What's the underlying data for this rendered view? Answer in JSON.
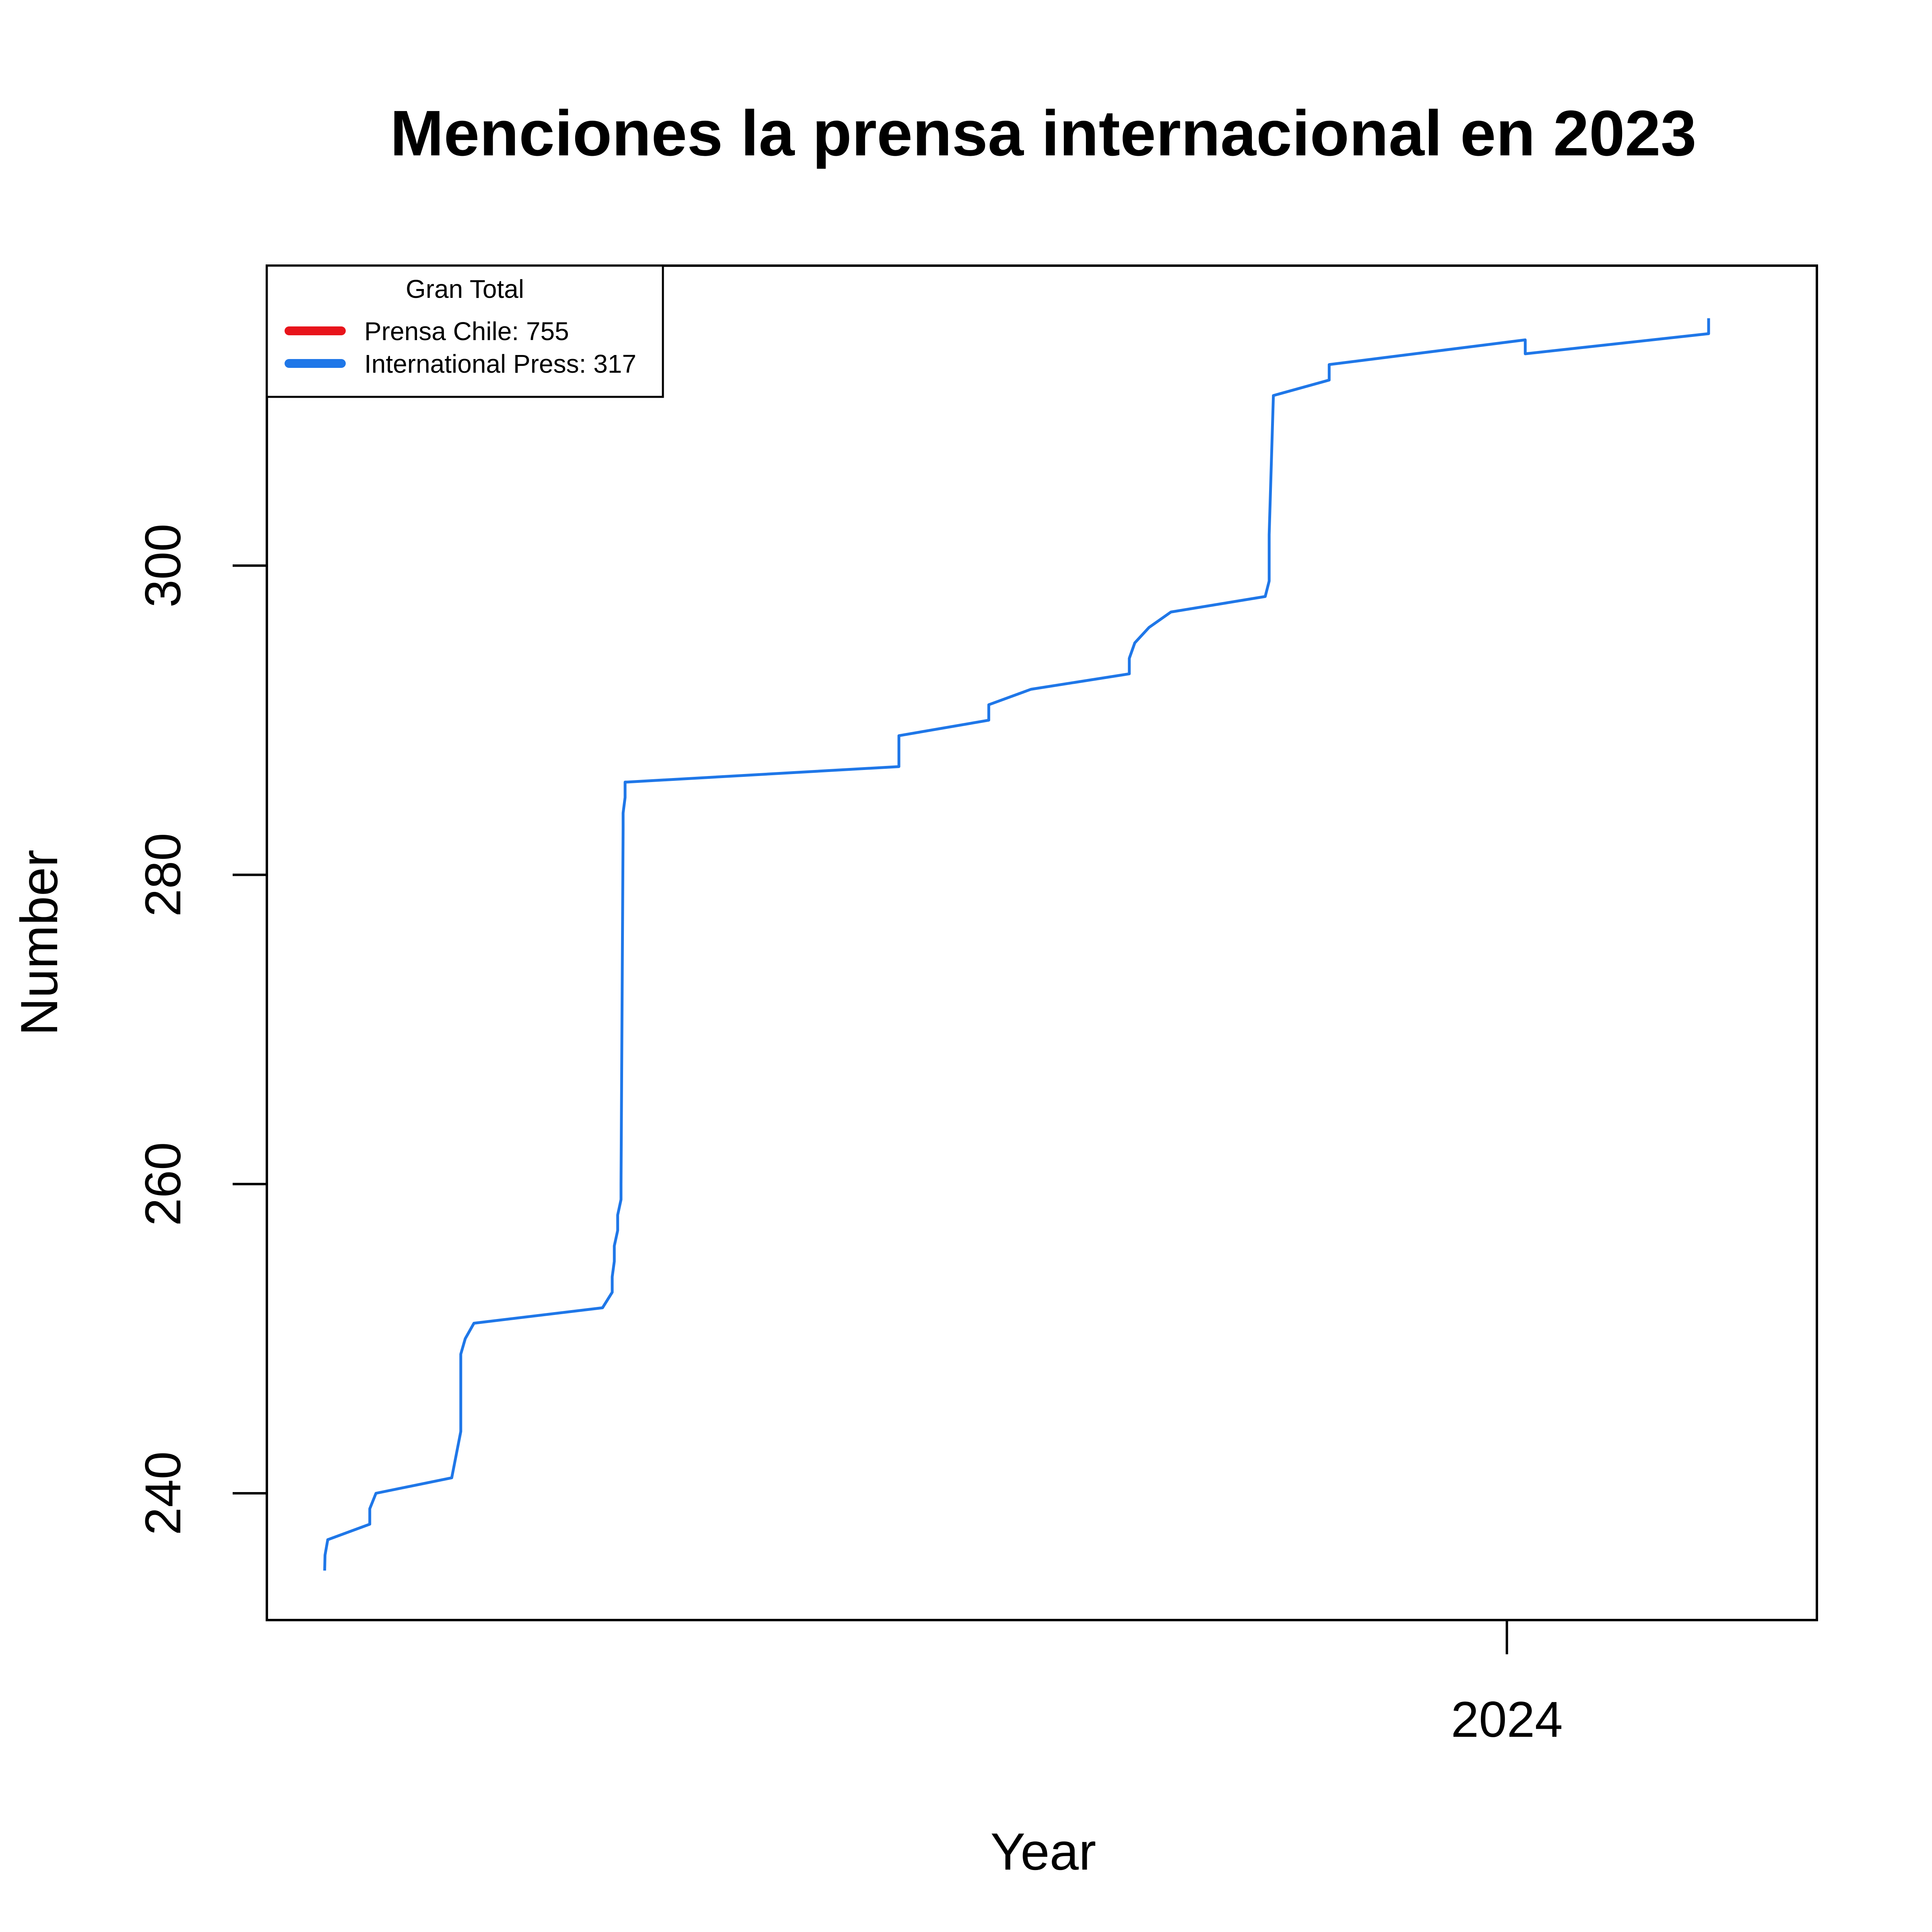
{
  "chart_data": {
    "type": "line",
    "title": "Menciones la prensa internacional en 2023",
    "xlabel": "Year",
    "ylabel": "Number",
    "xlim": [
      2023.0,
      2024.25
    ],
    "ylim": [
      231.8,
      319.4
    ],
    "x_ticks": [
      2024
    ],
    "x_tick_labels": [
      "2024"
    ],
    "y_ticks": [
      240,
      260,
      280,
      300
    ],
    "y_tick_labels": [
      "240",
      "260",
      "280",
      "300"
    ],
    "grid": false,
    "legend": {
      "placement": "top-left",
      "title": "Gran Total",
      "entries": [
        {
          "label": "Prensa Chile: 755",
          "color": "#e8141b"
        },
        {
          "label": "International Press: 317",
          "color": "#1f77e8"
        }
      ]
    },
    "series": [
      {
        "color": "#1f77e8",
        "x": [
          2023.0466,
          2023.0469,
          2023.0491,
          2023.083,
          2023.083,
          2023.088,
          2023.1491,
          2023.1564,
          2023.1564,
          2023.16,
          2023.167,
          2023.2707,
          2023.2785,
          2023.2785,
          2023.2802,
          2023.2802,
          2023.2829,
          2023.2829,
          2023.2856,
          2023.2856,
          2023.2873,
          2023.2873,
          2023.2889,
          2023.2889,
          2023.2906,
          2023.5097,
          2023.5097,
          2023.5822,
          2023.5822,
          2023.6162,
          2023.6955,
          2023.6955,
          2023.6999,
          2023.7114,
          2023.7291,
          2023.8051,
          2023.8083,
          2023.8083,
          2023.8117,
          2023.8567,
          2023.8567,
          2024.0148,
          2024.0148,
          2024.1627,
          2024.1627
        ],
        "values": [
          235,
          236,
          237,
          238,
          239,
          240,
          241,
          244,
          249,
          250,
          251,
          252,
          253,
          254,
          255,
          256,
          257,
          258,
          259,
          260,
          283,
          284,
          285,
          286,
          286,
          287,
          289,
          290,
          291,
          292,
          293,
          294,
          295,
          296,
          297,
          298,
          299,
          302,
          311,
          312,
          313,
          314.6,
          313.7,
          315,
          316
        ]
      }
    ]
  }
}
